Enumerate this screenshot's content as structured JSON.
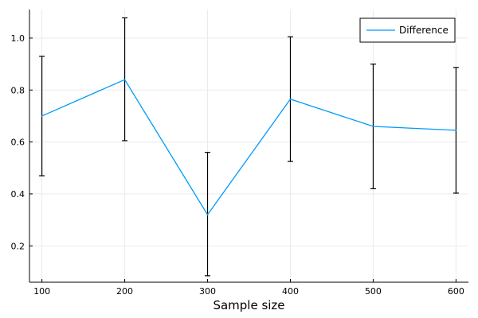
{
  "chart_data": {
    "type": "line",
    "title": "",
    "xlabel": "Sample size",
    "ylabel": "",
    "x": [
      100,
      200,
      300,
      400,
      500,
      600
    ],
    "xticks": [
      "100",
      "200",
      "300",
      "400",
      "500",
      "600"
    ],
    "yticks": [
      "0.2",
      "0.4",
      "0.6",
      "0.8",
      "1.0"
    ],
    "ytick_values": [
      0.2,
      0.4,
      0.6,
      0.8,
      1.0
    ],
    "xlim": [
      85,
      615
    ],
    "ylim": [
      0.06,
      1.11
    ],
    "grid": true,
    "legend_position": "top-right",
    "series": [
      {
        "name": "Difference",
        "color": "#009AFA",
        "values": [
          0.7,
          0.84,
          0.32,
          0.765,
          0.66,
          0.645
        ],
        "error_low": [
          0.47,
          0.605,
          0.085,
          0.525,
          0.42,
          0.403
        ],
        "error_high": [
          0.93,
          1.078,
          0.56,
          1.005,
          0.9,
          0.887
        ]
      }
    ]
  }
}
